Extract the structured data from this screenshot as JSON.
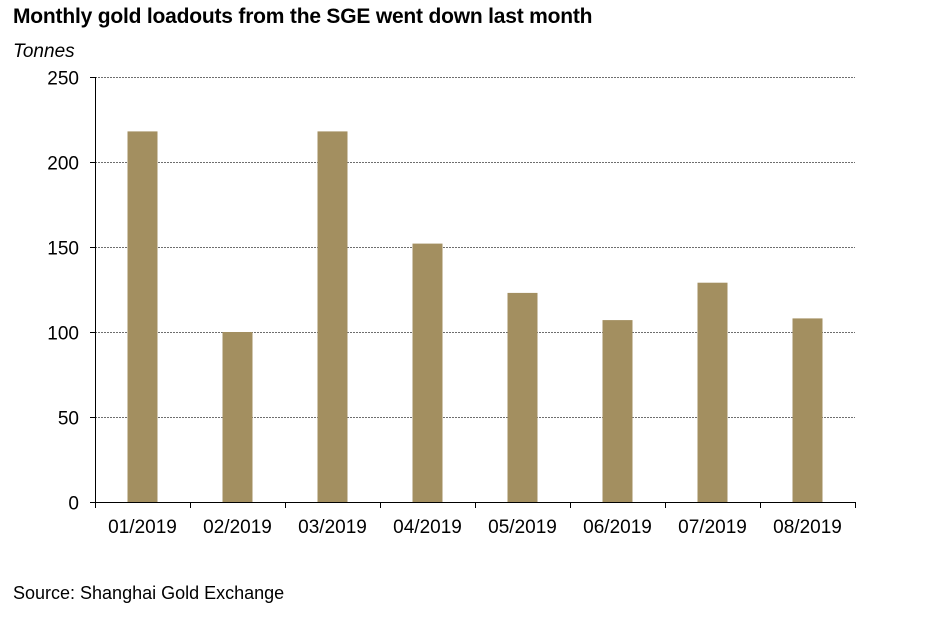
{
  "chart_data": {
    "type": "bar",
    "title": "Monthly gold loadouts from the SGE went down last month",
    "ylabel": "Tonnes",
    "xlabel": "",
    "categories": [
      "01/2019",
      "02/2019",
      "03/2019",
      "04/2019",
      "05/2019",
      "06/2019",
      "07/2019",
      "08/2019"
    ],
    "values": [
      218,
      100,
      218,
      152,
      123,
      107,
      129,
      108
    ],
    "ylim": [
      0,
      250
    ],
    "yticks": [
      0,
      50,
      100,
      150,
      200,
      250
    ],
    "grid": true,
    "bar_color": "#a38f60",
    "source": "Source: Shanghai Gold Exchange"
  }
}
